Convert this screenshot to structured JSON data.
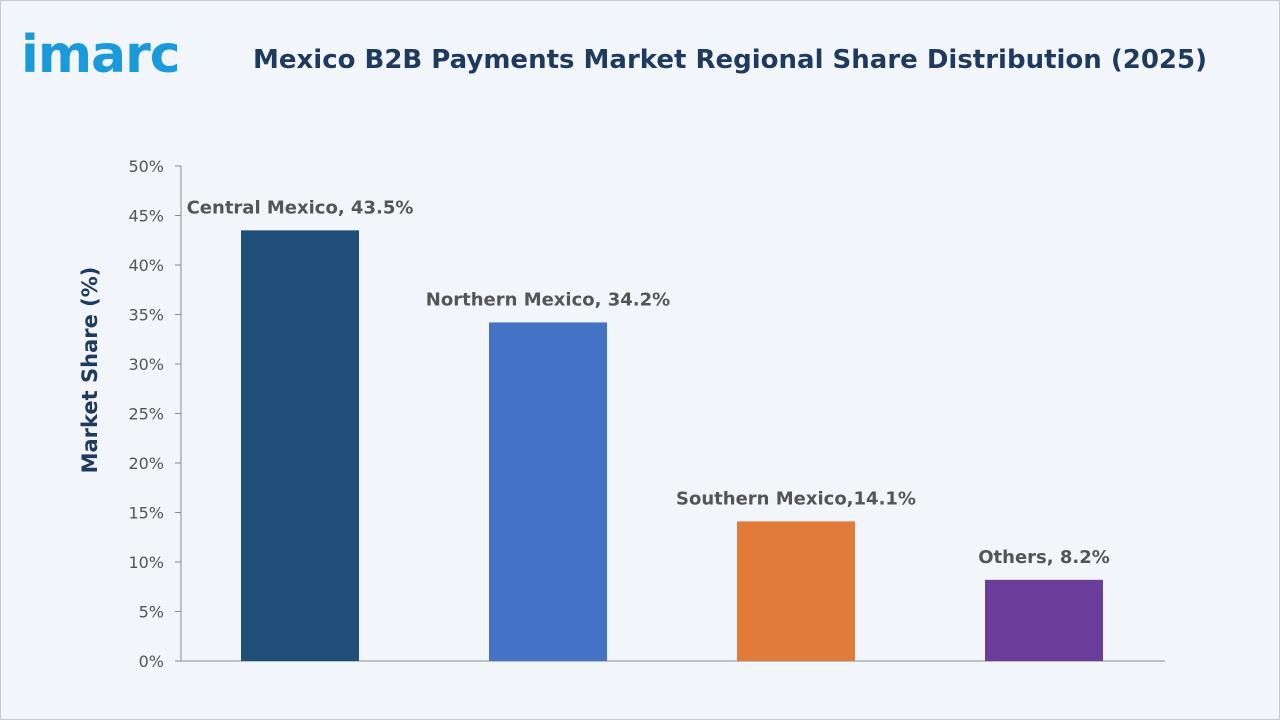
{
  "logo": {
    "text": "imarc",
    "color": "#1a9ad9"
  },
  "chart_data": {
    "type": "bar",
    "title": "Mexico B2B Payments Market Regional Share Distribution (2025)",
    "xlabel": "",
    "ylabel": "Market Share (%)",
    "ylim": [
      0,
      50
    ],
    "y_ticks": [
      "0%",
      "5%",
      "10%",
      "15%",
      "20%",
      "25%",
      "30%",
      "35%",
      "40%",
      "45%",
      "50%"
    ],
    "categories": [
      "Central Mexico",
      "Northern Mexico",
      "Southern Mexico",
      "Others"
    ],
    "values": [
      43.5,
      34.2,
      14.1,
      8.2
    ],
    "data_labels": [
      "Central Mexico, 43.5%",
      "Northern Mexico, 34.2%",
      "Southern Mexico,14.1%",
      "Others, 8.2%"
    ],
    "colors": [
      "#1f4e79",
      "#4472c4",
      "#e07b39",
      "#6a3d9a"
    ],
    "grid": false,
    "legend": "none"
  }
}
